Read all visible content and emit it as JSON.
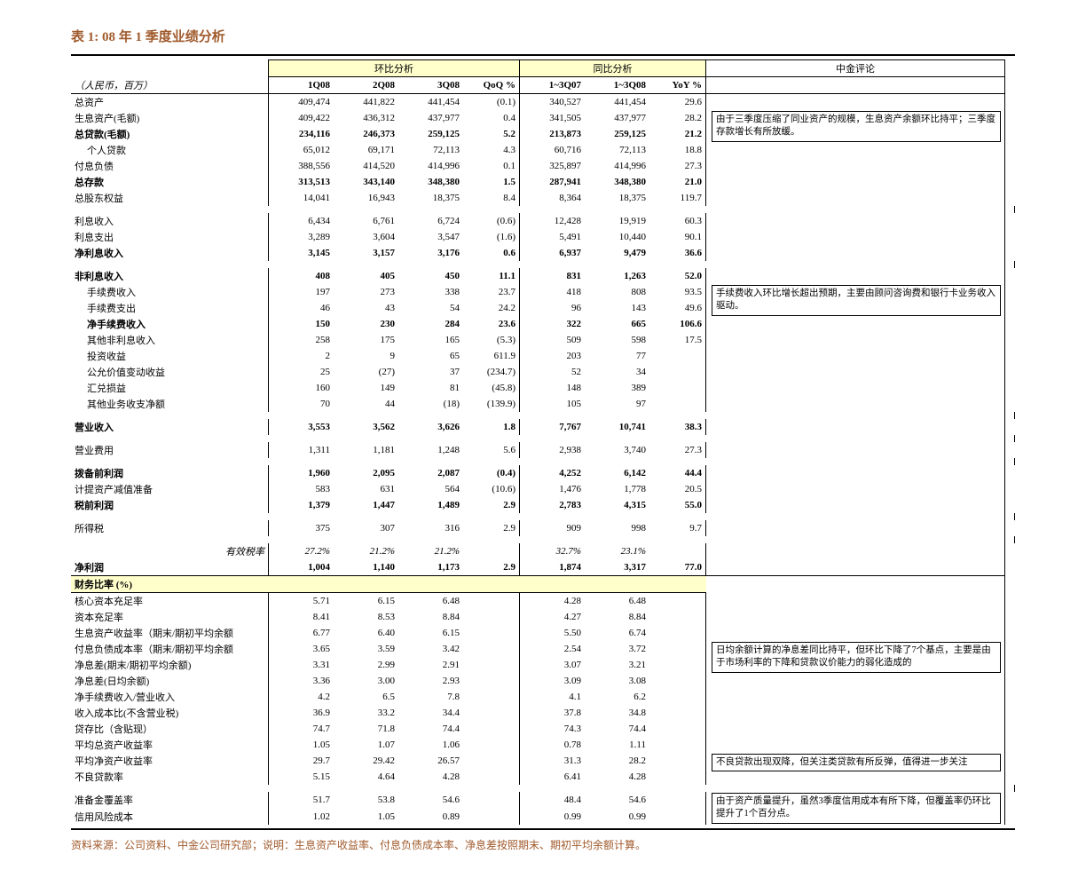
{
  "title": "表 1:  08 年 1 季度业绩分析",
  "unit_label": "（人民币，百万）",
  "group_headers": {
    "qoq": "环比分析",
    "yoy": "同比分析",
    "comment": "中金评论"
  },
  "col_headers": [
    "1Q08",
    "2Q08",
    "3Q08",
    "QoQ %",
    "1~3Q07",
    "1~3Q08",
    "YoY %"
  ],
  "colors": {
    "title": "#a05a2c",
    "highlight_bg": "#ffffcc",
    "border": "#000000"
  },
  "comments": {
    "c1": "由于三季度压缩了同业资产的规模，生息资产余额环比持平；三季度存款增长有所放缓。",
    "c2": "手续费收入环比增长超出预期，主要由顾问咨询费和银行卡业务收入驱动。",
    "c3": "日均余额计算的净息差同比持平，但环比下降了7个基点，主要是由于市场利率的下降和贷款议价能力的弱化造成的",
    "c4": "不良贷款出现双降，但关注类贷款有所反弹，值得进一步关注",
    "c5": "由于资产质量提升，虽然3季度信用成本有所下降，但覆盖率仍环比提升了1个百分点。"
  },
  "section_ratios_label": "财务比率 (%)",
  "eff_tax_label": "有效税率",
  "rows": [
    {
      "label": "总资产",
      "v": [
        "409,474",
        "441,822",
        "441,454",
        "(0.1)",
        "340,527",
        "441,454",
        "29.6"
      ]
    },
    {
      "label": "生息资产(毛额)",
      "v": [
        "409,422",
        "436,312",
        "437,977",
        "0.4",
        "341,505",
        "437,977",
        "28.2"
      ]
    },
    {
      "label": "总贷款(毛额)",
      "v": [
        "234,116",
        "246,373",
        "259,125",
        "5.2",
        "213,873",
        "259,125",
        "21.2"
      ],
      "bold": true
    },
    {
      "label": "个人贷款",
      "indent": true,
      "v": [
        "65,012",
        "69,171",
        "72,113",
        "4.3",
        "60,716",
        "72,113",
        "18.8"
      ]
    },
    {
      "label": "付息负债",
      "v": [
        "388,556",
        "414,520",
        "414,996",
        "0.1",
        "325,897",
        "414,996",
        "27.3"
      ]
    },
    {
      "label": "总存款",
      "v": [
        "313,513",
        "343,140",
        "348,380",
        "1.5",
        "287,941",
        "348,380",
        "21.0"
      ],
      "bold": true
    },
    {
      "label": "总股东权益",
      "v": [
        "14,041",
        "16,943",
        "18,375",
        "8.4",
        "8,364",
        "18,375",
        "119.7"
      ]
    },
    {
      "spacer": true
    },
    {
      "label": "利息收入",
      "v": [
        "6,434",
        "6,761",
        "6,724",
        "(0.6)",
        "12,428",
        "19,919",
        "60.3"
      ]
    },
    {
      "label": "利息支出",
      "v": [
        "3,289",
        "3,604",
        "3,547",
        "(1.6)",
        "5,491",
        "10,440",
        "90.1"
      ]
    },
    {
      "label": "净利息收入",
      "v": [
        "3,145",
        "3,157",
        "3,176",
        "0.6",
        "6,937",
        "9,479",
        "36.6"
      ],
      "bold": true
    },
    {
      "spacer": true
    },
    {
      "label": "非利息收入",
      "v": [
        "408",
        "405",
        "450",
        "11.1",
        "831",
        "1,263",
        "52.0"
      ],
      "bold": true
    },
    {
      "label": "手续费收入",
      "indent": true,
      "v": [
        "197",
        "273",
        "338",
        "23.7",
        "418",
        "808",
        "93.5"
      ]
    },
    {
      "label": "手续费支出",
      "indent": true,
      "v": [
        "46",
        "43",
        "54",
        "24.2",
        "96",
        "143",
        "49.6"
      ]
    },
    {
      "label": "净手续费收入",
      "indent": true,
      "v": [
        "150",
        "230",
        "284",
        "23.6",
        "322",
        "665",
        "106.6"
      ],
      "bold": true
    },
    {
      "label": "其他非利息收入",
      "indent": true,
      "v": [
        "258",
        "175",
        "165",
        "(5.3)",
        "509",
        "598",
        "17.5"
      ]
    },
    {
      "label": "投资收益",
      "indent": true,
      "v": [
        "2",
        "9",
        "65",
        "611.9",
        "203",
        "77",
        ""
      ]
    },
    {
      "label": "公允价值变动收益",
      "indent": true,
      "v": [
        "25",
        "(27)",
        "37",
        "(234.7)",
        "52",
        "34",
        ""
      ]
    },
    {
      "label": "汇兑损益",
      "indent": true,
      "v": [
        "160",
        "149",
        "81",
        "(45.8)",
        "148",
        "389",
        ""
      ]
    },
    {
      "label": "其他业务收支净额",
      "indent": true,
      "v": [
        "70",
        "44",
        "(18)",
        "(139.9)",
        "105",
        "97",
        ""
      ]
    },
    {
      "spacer": true
    },
    {
      "label": "营业收入",
      "v": [
        "3,553",
        "3,562",
        "3,626",
        "1.8",
        "7,767",
        "10,741",
        "38.3"
      ],
      "bold": true
    },
    {
      "spacer": true
    },
    {
      "label": "营业费用",
      "v": [
        "1,311",
        "1,181",
        "1,248",
        "5.6",
        "2,938",
        "3,740",
        "27.3"
      ]
    },
    {
      "spacer": true
    },
    {
      "label": "拨备前利润",
      "v": [
        "1,960",
        "2,095",
        "2,087",
        "(0.4)",
        "4,252",
        "6,142",
        "44.4"
      ],
      "bold": true
    },
    {
      "label": "计提资产减值准备",
      "v": [
        "583",
        "631",
        "564",
        "(10.6)",
        "1,476",
        "1,778",
        "20.5"
      ]
    },
    {
      "label": "税前利润",
      "v": [
        "1,379",
        "1,447",
        "1,489",
        "2.9",
        "2,783",
        "4,315",
        "55.0"
      ],
      "bold": true
    },
    {
      "spacer": true
    },
    {
      "label": "所得税",
      "v": [
        "375",
        "307",
        "316",
        "2.9",
        "909",
        "998",
        "9.7"
      ]
    },
    {
      "spacer": true
    },
    {
      "eff_tax": true,
      "v": [
        "27.2%",
        "21.2%",
        "21.2%",
        "",
        "32.7%",
        "23.1%",
        ""
      ]
    },
    {
      "label": "净利润",
      "v": [
        "1,004",
        "1,140",
        "1,173",
        "2.9",
        "1,874",
        "3,317",
        "77.0"
      ],
      "bold": true,
      "underline": true
    }
  ],
  "ratio_rows": [
    {
      "label": "核心资本充足率",
      "v": [
        "5.71",
        "6.15",
        "6.48",
        "",
        "4.28",
        "6.48",
        ""
      ]
    },
    {
      "label": "资本充足率",
      "v": [
        "8.41",
        "8.53",
        "8.84",
        "",
        "4.27",
        "8.84",
        ""
      ]
    },
    {
      "label": "生息资产收益率（期末/期初平均余额",
      "v": [
        "6.77",
        "6.40",
        "6.15",
        "",
        "5.50",
        "6.74",
        ""
      ]
    },
    {
      "label": "付息负债成本率（期末/期初平均余额",
      "v": [
        "3.65",
        "3.59",
        "3.42",
        "",
        "2.54",
        "3.72",
        ""
      ]
    },
    {
      "label": "净息差(期末/期初平均余额)",
      "v": [
        "3.31",
        "2.99",
        "2.91",
        "",
        "3.07",
        "3.21",
        ""
      ]
    },
    {
      "label": "净息差(日均余额)",
      "v": [
        "3.36",
        "3.00",
        "2.93",
        "",
        "3.09",
        "3.08",
        ""
      ]
    },
    {
      "label": "净手续费收入/营业收入",
      "v": [
        "4.2",
        "6.5",
        "7.8",
        "",
        "4.1",
        "6.2",
        ""
      ]
    },
    {
      "label": "收入成本比(不含营业税)",
      "v": [
        "36.9",
        "33.2",
        "34.4",
        "",
        "37.8",
        "34.8",
        ""
      ]
    },
    {
      "label": "贷存比（含贴现）",
      "v": [
        "74.7",
        "71.8",
        "74.4",
        "",
        "74.3",
        "74.4",
        ""
      ]
    },
    {
      "label": "平均总资产收益率",
      "v": [
        "1.05",
        "1.07",
        "1.06",
        "",
        "0.78",
        "1.11",
        ""
      ]
    },
    {
      "label": "平均净资产收益率",
      "v": [
        "29.7",
        "29.42",
        "26.57",
        "",
        "31.3",
        "28.2",
        ""
      ]
    },
    {
      "label": "不良贷款率",
      "v": [
        "5.15",
        "4.64",
        "4.28",
        "",
        "6.41",
        "4.28",
        ""
      ]
    },
    {
      "spacer": true
    },
    {
      "label": "准备金覆盖率",
      "v": [
        "51.7",
        "53.8",
        "54.6",
        "",
        "48.4",
        "54.6",
        ""
      ]
    },
    {
      "label": "信用风险成本",
      "v": [
        "1.02",
        "1.05",
        "0.89",
        "",
        "0.99",
        "0.99",
        ""
      ]
    }
  ],
  "source": "资料来源：公司资料、中金公司研究部；说明：生息资产收益率、付息负债成本率、净息差按照期末、期初平均余额计算。"
}
